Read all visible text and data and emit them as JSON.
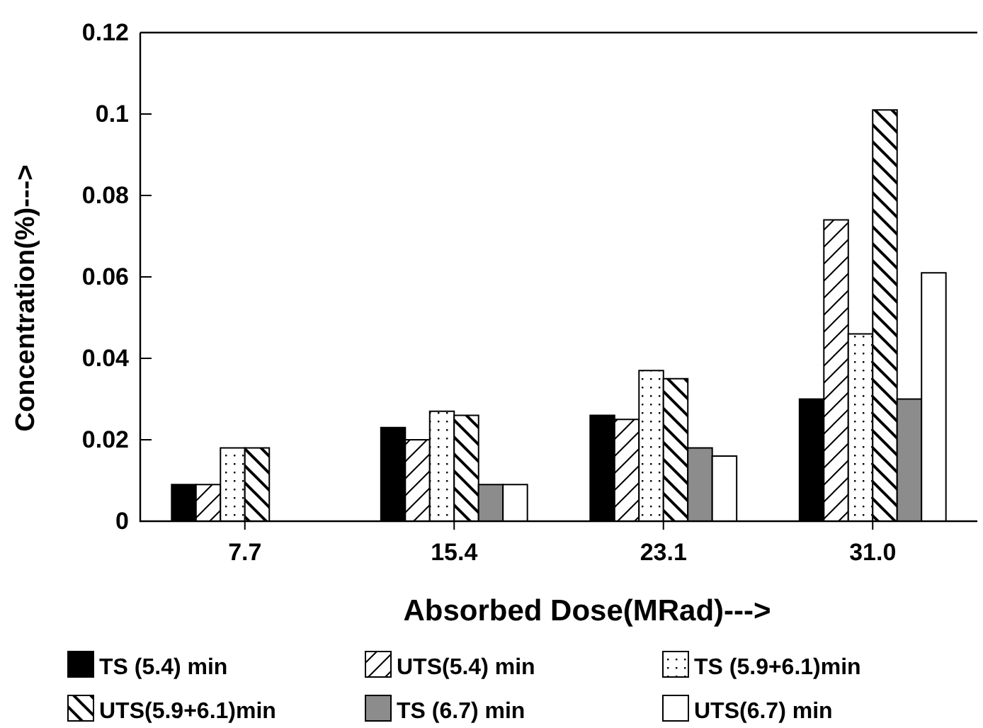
{
  "chart_data": {
    "type": "bar",
    "xlabel": "Absorbed Dose(MRad)--->",
    "ylabel": "Concentration(%)--->",
    "categories": [
      "7.7",
      "15.4",
      "23.1",
      "31.0"
    ],
    "series": [
      {
        "name": "TS (5.4) min",
        "color": "#000000",
        "values": [
          0.009,
          0.023,
          0.026,
          0.03
        ]
      },
      {
        "name": "UTS(5.4) min",
        "color": "#000000",
        "values": [
          0.009,
          0.02,
          0.025,
          0.074
        ]
      },
      {
        "name": "TS (5.9+6.1)min",
        "color": "#000000",
        "values": [
          0.018,
          0.027,
          0.037,
          0.046
        ]
      },
      {
        "name": "UTS(5.9+6.1)min",
        "color": "#000000",
        "values": [
          0.018,
          0.026,
          0.035,
          0.101
        ]
      },
      {
        "name": "TS (6.7) min",
        "color": "#8c8c8c",
        "values": [
          null,
          0.009,
          0.018,
          0.03
        ]
      },
      {
        "name": "UTS(6.7) min",
        "color": "#ffffff",
        "values": [
          null,
          0.009,
          0.016,
          0.061
        ]
      }
    ],
    "ylim": [
      0,
      0.12
    ],
    "yticks": [
      0,
      {
        "value": 0.02,
        "label": "0.02"
      },
      {
        "value": 0.04,
        "label": "0.04"
      },
      {
        "value": 0.06,
        "label": "0.06"
      },
      {
        "value": 0.08,
        "label": "0.08"
      },
      0.1,
      0.12
    ],
    "grid": false,
    "legend": "bottom"
  }
}
